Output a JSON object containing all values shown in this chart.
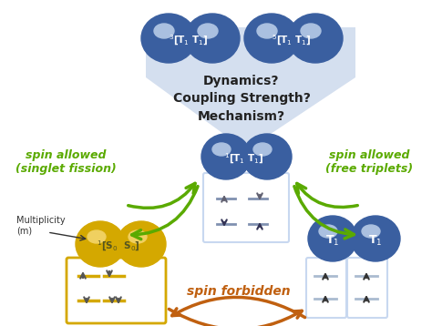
{
  "bg_color": "#ffffff",
  "green_color": "#5aaa00",
  "orange_color": "#c06010",
  "blue_dark": "#3a5fa0",
  "blue_light": "#aac0e0",
  "yellow_color": "#d4a800",
  "yellow_light": "#f0d060",
  "box_blue": "#c8d8f0",
  "gray_spin": "#606070",
  "text_dynamics": "Dynamics?\nCoupling Strength?\nMechanism?",
  "text_spin_allowed_left": "spin allowed\n(singlet fission)",
  "text_spin_allowed_right": "spin allowed\n(free triplets)",
  "text_spin_forbidden": "spin forbidden",
  "text_multiplicity": "Multiplicity\n(m)"
}
